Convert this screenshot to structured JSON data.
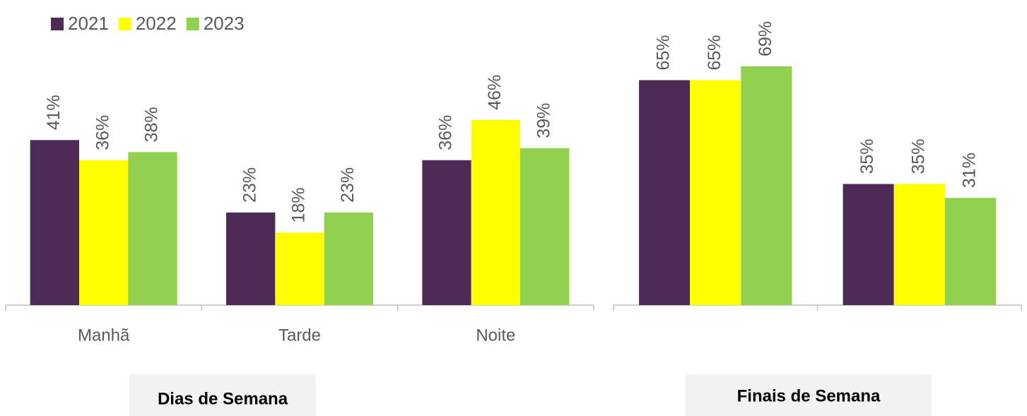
{
  "chart_data": [
    {
      "type": "bar",
      "categories": [
        "Manhã",
        "Tarde",
        "Noite"
      ],
      "series": [
        {
          "name": "2021",
          "color": "#4e2a57",
          "values": [
            41,
            23,
            36
          ],
          "value_labels": [
            "41%",
            "23%",
            "36%"
          ]
        },
        {
          "name": "2022",
          "color": "#ffff00",
          "values": [
            36,
            18,
            46
          ],
          "value_labels": [
            "36%",
            "18%",
            "46%"
          ]
        },
        {
          "name": "2023",
          "color": "#92d050",
          "values": [
            38,
            23,
            39
          ],
          "value_labels": [
            "38%",
            "23%",
            "39%"
          ]
        }
      ],
      "legend": "top-left",
      "title": "Dias de Semana"
    },
    {
      "type": "bar",
      "categories": [
        null,
        null
      ],
      "series": [
        {
          "color": "#4e2a57",
          "values": [
            65,
            35
          ],
          "value_labels": [
            "65%",
            "35%"
          ]
        },
        {
          "color": "#ffff00",
          "values": [
            65,
            35
          ],
          "value_labels": [
            "65%",
            "35%"
          ]
        },
        {
          "color": "#92d050",
          "values": [
            69,
            31
          ],
          "value_labels": [
            "69%",
            "31%"
          ]
        }
      ],
      "title": "Finais de Semana"
    }
  ]
}
